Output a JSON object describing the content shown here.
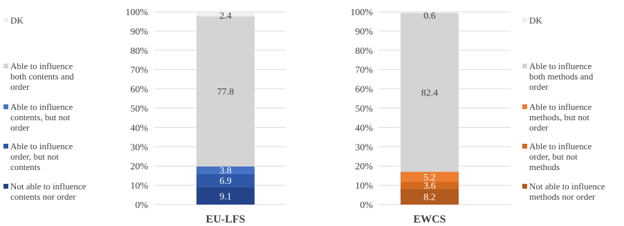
{
  "chart_data": [
    {
      "type": "bar",
      "stacked": true,
      "category": "EU-LFS",
      "ylim": [
        0,
        100
      ],
      "y_ticks": [
        "0%",
        "10%",
        "20%",
        "30%",
        "40%",
        "50%",
        "60%",
        "70%",
        "80%",
        "90%",
        "100%"
      ],
      "grid": true,
      "legend_placement": "left",
      "series": [
        {
          "name": "Not able to influence contents nor order",
          "value": 9.1,
          "label": "9.1",
          "color": "#24448a"
        },
        {
          "name": "Able to influence order, but not contents",
          "value": 6.9,
          "label": "6.9",
          "color": "#2f58a8"
        },
        {
          "name": "Able to influence contents, but not order",
          "value": 3.8,
          "label": "3.8",
          "color": "#4472c4"
        },
        {
          "name": "Able to influence both contents and order",
          "value": 77.8,
          "label": "77.8",
          "color": "#d4d4d4"
        },
        {
          "name": "DK",
          "value": 2.4,
          "label": "2.4",
          "color": "#efefef"
        }
      ]
    },
    {
      "type": "bar",
      "stacked": true,
      "category": "EWCS",
      "ylim": [
        0,
        100
      ],
      "y_ticks": [
        "0%",
        "10%",
        "20%",
        "30%",
        "40%",
        "50%",
        "60%",
        "70%",
        "80%",
        "90%",
        "100%"
      ],
      "grid": true,
      "legend_placement": "right",
      "series": [
        {
          "name": "Not able to influence methods nor order",
          "value": 8.2,
          "label": "8.2",
          "color": "#b35a1f"
        },
        {
          "name": "Able to influence order, but not methods",
          "value": 3.6,
          "label": "3.6",
          "color": "#d2691e"
        },
        {
          "name": "Able to influence methods, but not order",
          "value": 5.2,
          "label": "5.2",
          "color": "#ed7d31"
        },
        {
          "name": "Able to influence both methods and order",
          "value": 82.4,
          "label": "82.4",
          "color": "#d4d4d4"
        },
        {
          "name": "DK",
          "value": 0.6,
          "label": "0.6",
          "color": "#efefef"
        }
      ]
    }
  ],
  "legend_left": [
    {
      "text": "DK",
      "color": "#efefef"
    },
    {
      "text": "Able to influence\nboth contents and\norder",
      "color": "#d4d4d4"
    },
    {
      "text": "Able to influence\ncontents, but not\norder",
      "color": "#4472c4"
    },
    {
      "text": "Able to influence\norder, but not\ncontents",
      "color": "#2f58a8"
    },
    {
      "text": "Not able to influence\ncontents nor order",
      "color": "#24448a"
    }
  ],
  "legend_right": [
    {
      "text": "DK",
      "color": "#efefef"
    },
    {
      "text": "Able to influence\nboth methods and\norder",
      "color": "#d4d4d4"
    },
    {
      "text": "Able to influence\nmethods, but not\norder",
      "color": "#ed7d31"
    },
    {
      "text": "Able to influence\norder, but not\nmethods",
      "color": "#d2691e"
    },
    {
      "text": "Not able to influence\nmethods nor order",
      "color": "#b35a1f"
    }
  ]
}
